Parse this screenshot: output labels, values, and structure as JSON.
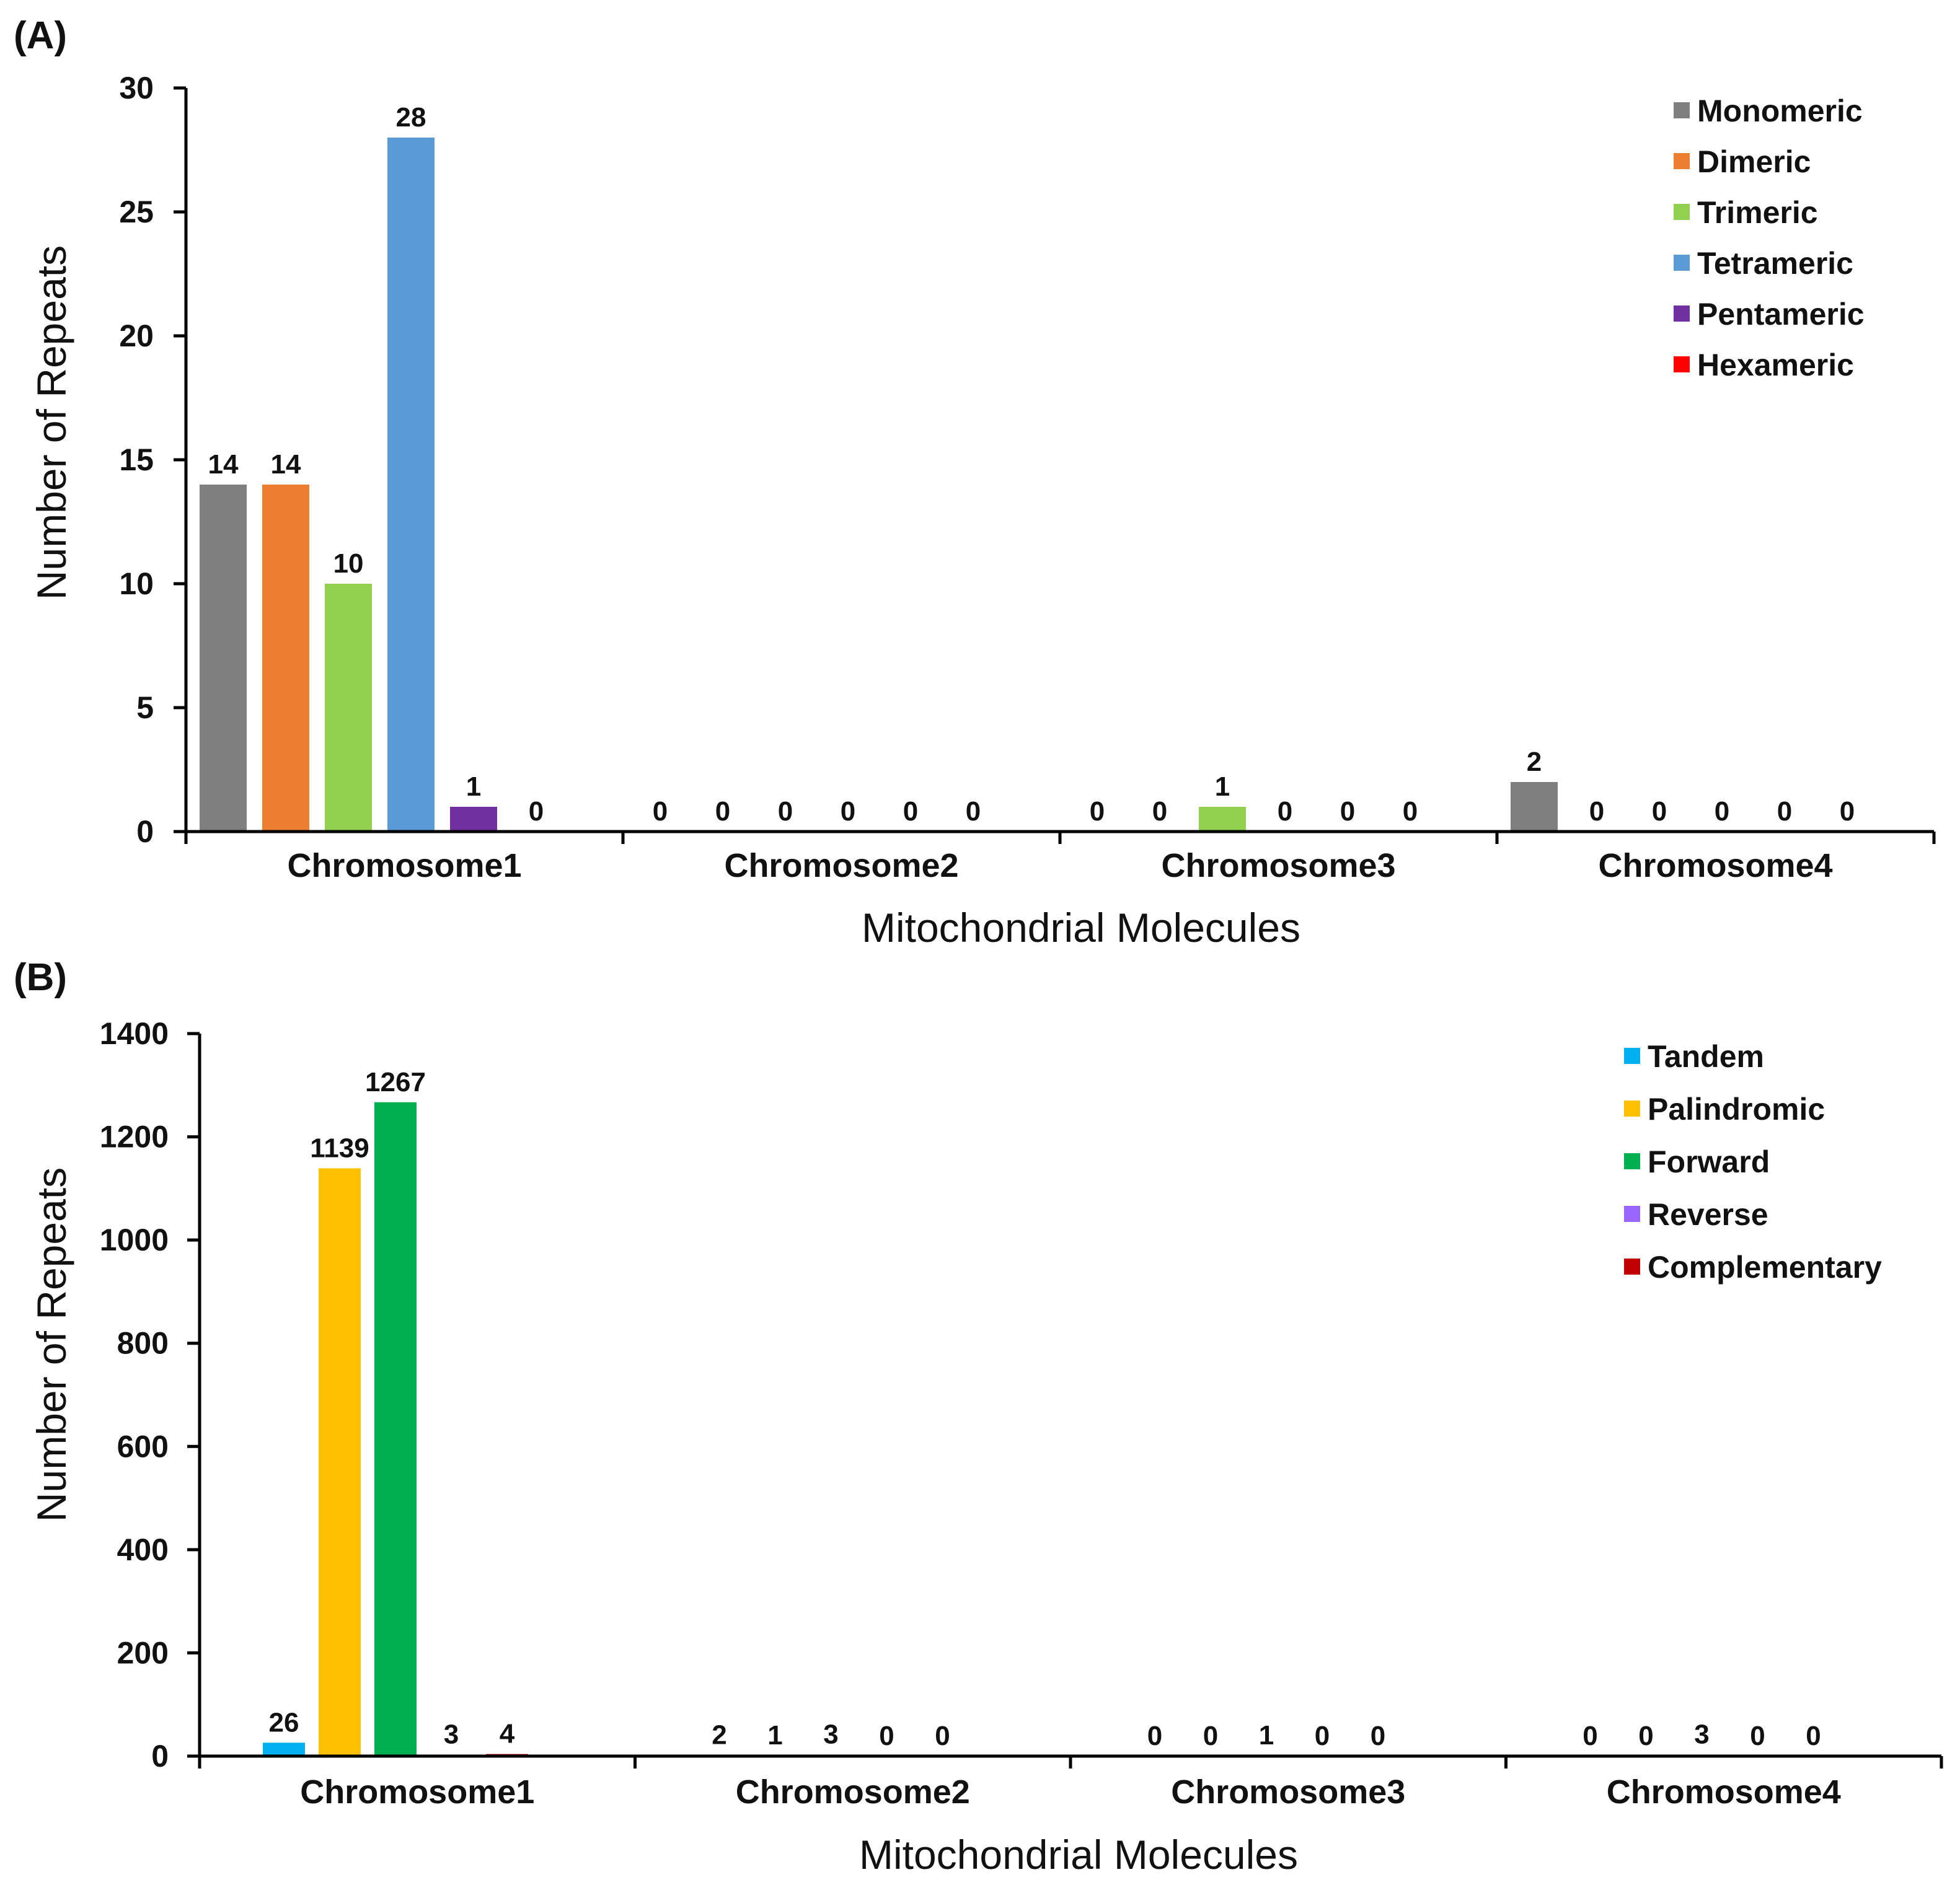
{
  "chart_data": [
    {
      "panel_label": "(A)",
      "type": "bar",
      "xlabel": "Mitochondrial Molecules",
      "ylabel": "Number of Repeats",
      "ylim": [
        0,
        30
      ],
      "yticks": [
        0,
        5,
        10,
        15,
        20,
        25,
        30
      ],
      "categories": [
        "Chromosome1",
        "Chromosome2",
        "Chromosome3",
        "Chromosome4"
      ],
      "legend_position": "top-right",
      "series": [
        {
          "name": "Monomeric",
          "color": "#7f7f7f",
          "values": [
            14,
            0,
            0,
            2
          ]
        },
        {
          "name": "Dimeric",
          "color": "#ed7d31",
          "values": [
            14,
            0,
            0,
            0
          ]
        },
        {
          "name": "Trimeric",
          "color": "#92d050",
          "values": [
            10,
            0,
            1,
            0
          ]
        },
        {
          "name": "Tetrameric",
          "color": "#5b9bd5",
          "values": [
            28,
            0,
            0,
            0
          ]
        },
        {
          "name": "Pentameric",
          "color": "#7030a0",
          "values": [
            1,
            0,
            0,
            0
          ]
        },
        {
          "name": "Hexameric",
          "color": "#ff0000",
          "values": [
            0,
            0,
            0,
            0
          ]
        }
      ]
    },
    {
      "panel_label": "(B)",
      "type": "bar",
      "xlabel": "Mitochondrial Molecules",
      "ylabel": "Number of Repeats",
      "ylim": [
        0,
        1400
      ],
      "yticks": [
        0,
        200,
        400,
        600,
        800,
        1000,
        1200,
        1400
      ],
      "categories": [
        "Chromosome1",
        "Chromosome2",
        "Chromosome3",
        "Chromosome4"
      ],
      "legend_position": "top-right",
      "series": [
        {
          "name": "Tandem",
          "color": "#00b0f0",
          "values": [
            26,
            2,
            0,
            0
          ]
        },
        {
          "name": "Palindromic",
          "color": "#ffc000",
          "values": [
            1139,
            1,
            0,
            0
          ]
        },
        {
          "name": "Forward",
          "color": "#00b050",
          "values": [
            1267,
            3,
            1,
            3
          ]
        },
        {
          "name": "Reverse",
          "color": "#9966ff",
          "values": [
            3,
            0,
            0,
            0
          ]
        },
        {
          "name": "Complementary",
          "color": "#c00000",
          "values": [
            4,
            0,
            0,
            0
          ]
        }
      ]
    }
  ]
}
